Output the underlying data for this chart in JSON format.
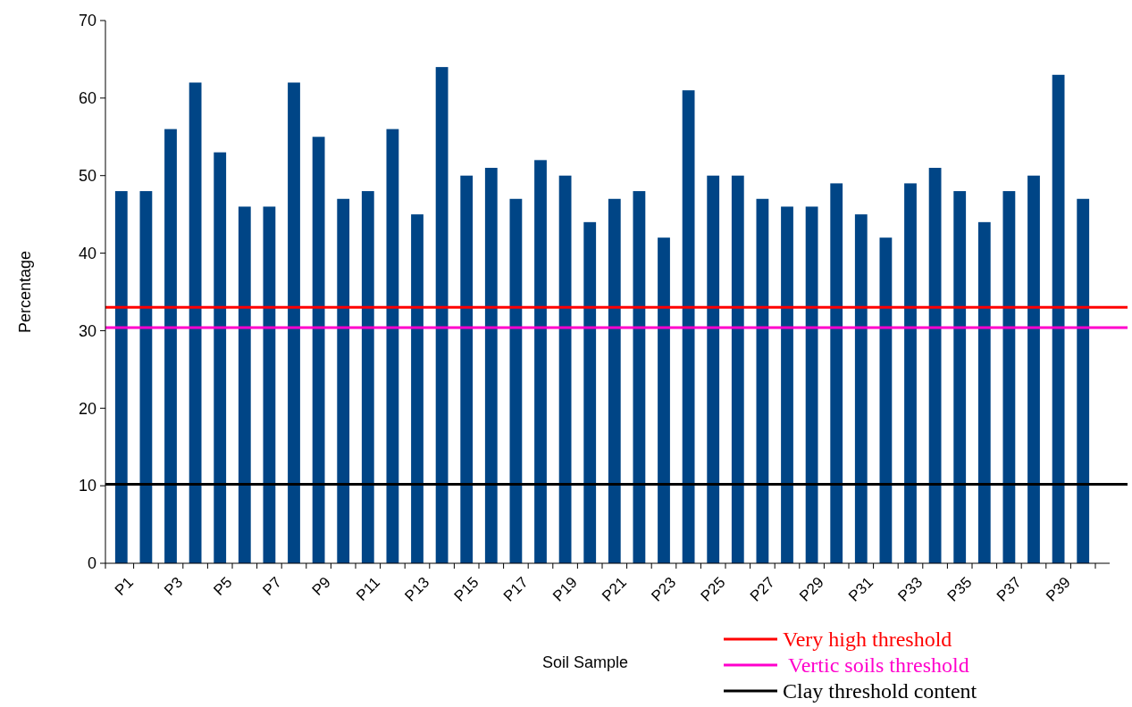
{
  "chart_data": {
    "type": "bar",
    "xlabel": "Soil Sample",
    "ylabel": "Percentage",
    "categories": [
      "P1",
      null,
      "P3",
      null,
      "P5",
      null,
      "P7",
      null,
      "P9",
      null,
      "P11",
      null,
      "P13",
      null,
      "P15",
      null,
      "P17",
      null,
      "P19",
      null,
      "P21",
      null,
      "P23",
      null,
      "P25",
      null,
      "P27",
      null,
      "P29",
      null,
      "P31",
      null,
      "P33",
      null,
      "P35",
      null,
      "P37",
      null,
      "P39",
      null
    ],
    "values": [
      48,
      48,
      56,
      62,
      53,
      46,
      46,
      62,
      55,
      47,
      48,
      56,
      45,
      64,
      50,
      51,
      47,
      52,
      50,
      44,
      47,
      48,
      42,
      61,
      50,
      50,
      47,
      46,
      46,
      49,
      45,
      42,
      49,
      51,
      48,
      44,
      48,
      50,
      63,
      47
    ],
    "color": "#004586",
    "ylim": [
      0,
      70
    ],
    "yticks": [
      0,
      10,
      20,
      30,
      40,
      50,
      60,
      70
    ],
    "grid": false,
    "legend": "bottom right",
    "ref_lines": [
      {
        "axis": "y",
        "value": 33,
        "label": "Very high threshold",
        "color": "#ff0000"
      },
      {
        "axis": "y",
        "value": 30.4,
        "label": "Vertic soils threshold",
        "color": "#ff00cc"
      },
      {
        "axis": "y",
        "value": 10.2,
        "label": "Clay threshold content",
        "color": "#000000"
      }
    ]
  }
}
